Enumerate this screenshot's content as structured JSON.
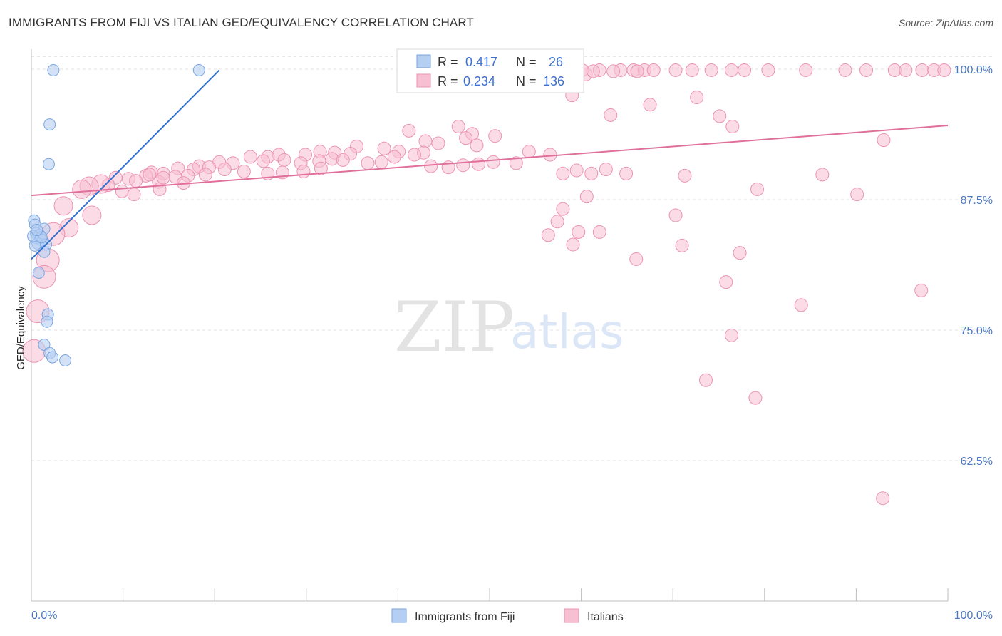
{
  "header": {
    "title": "IMMIGRANTS FROM FIJI VS ITALIAN GED/EQUIVALENCY CORRELATION CHART",
    "source": "Source: ZipAtlas.com"
  },
  "watermark": {
    "zip": "ZIP",
    "atlas": "atlas"
  },
  "stats": {
    "fiji": {
      "r_label": "R =",
      "r_value": "0.417",
      "n_label": "N =",
      "n_value": "26"
    },
    "italians": {
      "r_label": "R =",
      "r_value": "0.234",
      "n_label": "N =",
      "n_value": "136"
    }
  },
  "colors": {
    "fiji_fill": "#b5cff2",
    "fiji_stroke": "#7aa6e0",
    "fiji_line": "#2f6fd0",
    "italians_fill": "#f7bfd2",
    "italians_stroke": "#ec93b3",
    "italians_line": "#e0709a",
    "grid": "#e2e2e2",
    "tick_text": "#4a78c4"
  },
  "chart_data": {
    "type": "scatter",
    "title": "IMMIGRANTS FROM FIJI VS ITALIAN GED/EQUIVALENCY CORRELATION CHART",
    "xlabel": "",
    "ylabel": "GED/Equivalency",
    "xlim": [
      0,
      100
    ],
    "ylim": [
      50,
      102
    ],
    "x_tick_labels": [
      "0.0%",
      "100.0%"
    ],
    "y_ticks": [
      62.5,
      75.0,
      87.5,
      100.0
    ],
    "y_tick_labels": [
      "62.5%",
      "75.0%",
      "87.5%",
      "100.0%"
    ],
    "grid": true,
    "legend_position": "bottom",
    "series": [
      {
        "name": "Immigrants from Fiji",
        "r": 0.417,
        "n": 26,
        "trend": [
          [
            0.0,
            81.8
          ],
          [
            20.5,
            99.9
          ]
        ],
        "points": [
          [
            2.4,
            99.9
          ],
          [
            18.3,
            99.9
          ],
          [
            2.0,
            94.7
          ],
          [
            1.9,
            90.9
          ],
          [
            0.3,
            85.5
          ],
          [
            0.4,
            85.1
          ],
          [
            1.4,
            84.7
          ],
          [
            0.5,
            84.3
          ],
          [
            0.9,
            84.1
          ],
          [
            0.6,
            83.8
          ],
          [
            1.0,
            83.7
          ],
          [
            1.2,
            83.6
          ],
          [
            0.7,
            83.3
          ],
          [
            1.6,
            83.2
          ],
          [
            0.4,
            83.1
          ],
          [
            1.4,
            82.5
          ],
          [
            0.8,
            80.5
          ],
          [
            1.8,
            76.5
          ],
          [
            1.7,
            75.8
          ],
          [
            1.4,
            73.6
          ],
          [
            2.0,
            72.8
          ],
          [
            2.3,
            72.4
          ],
          [
            3.7,
            72.1
          ],
          [
            0.2,
            84.0
          ],
          [
            1.1,
            83.9
          ],
          [
            0.6,
            84.6
          ]
        ]
      },
      {
        "name": "Italians",
        "r": 0.234,
        "n": 136,
        "trend": [
          [
            0.0,
            87.9
          ],
          [
            100.0,
            94.6
          ]
        ],
        "points": [
          [
            55.4,
            99.9
          ],
          [
            56.9,
            99.9
          ],
          [
            58.1,
            99.9
          ],
          [
            60.1,
            99.9
          ],
          [
            62.0,
            99.9
          ],
          [
            64.3,
            99.9
          ],
          [
            65.7,
            99.9
          ],
          [
            66.9,
            99.9
          ],
          [
            67.9,
            99.9
          ],
          [
            70.3,
            99.9
          ],
          [
            72.1,
            99.9
          ],
          [
            74.2,
            99.9
          ],
          [
            76.4,
            99.9
          ],
          [
            77.8,
            99.9
          ],
          [
            80.4,
            99.9
          ],
          [
            84.5,
            99.9
          ],
          [
            88.8,
            99.9
          ],
          [
            91.1,
            99.9
          ],
          [
            94.2,
            99.9
          ],
          [
            95.4,
            99.9
          ],
          [
            97.2,
            99.9
          ],
          [
            98.5,
            99.9
          ],
          [
            99.6,
            99.9
          ],
          [
            63.5,
            99.8
          ],
          [
            66.1,
            99.8
          ],
          [
            60.5,
            99.5
          ],
          [
            61.3,
            99.8
          ],
          [
            59.2,
            99.8
          ],
          [
            57.6,
            99.8
          ],
          [
            56.5,
            99.9
          ],
          [
            59.0,
            97.5
          ],
          [
            72.6,
            97.3
          ],
          [
            67.5,
            96.6
          ],
          [
            63.2,
            95.6
          ],
          [
            75.1,
            95.5
          ],
          [
            76.5,
            94.5
          ],
          [
            41.2,
            94.1
          ],
          [
            46.6,
            94.5
          ],
          [
            48.1,
            93.8
          ],
          [
            50.6,
            93.6
          ],
          [
            47.4,
            93.4
          ],
          [
            43.0,
            93.1
          ],
          [
            44.4,
            92.9
          ],
          [
            48.6,
            92.7
          ],
          [
            35.5,
            92.6
          ],
          [
            38.5,
            92.4
          ],
          [
            40.1,
            92.1
          ],
          [
            42.8,
            92.0
          ],
          [
            54.3,
            92.1
          ],
          [
            56.6,
            91.8
          ],
          [
            31.5,
            92.1
          ],
          [
            33.1,
            92.0
          ],
          [
            34.8,
            91.9
          ],
          [
            29.9,
            91.8
          ],
          [
            27.0,
            91.8
          ],
          [
            25.8,
            91.6
          ],
          [
            23.9,
            91.6
          ],
          [
            25.3,
            91.2
          ],
          [
            27.6,
            91.3
          ],
          [
            29.4,
            91.0
          ],
          [
            31.4,
            91.2
          ],
          [
            32.8,
            91.4
          ],
          [
            34.0,
            91.3
          ],
          [
            36.7,
            91.0
          ],
          [
            38.2,
            91.1
          ],
          [
            39.6,
            91.6
          ],
          [
            41.8,
            91.8
          ],
          [
            43.6,
            90.7
          ],
          [
            45.5,
            90.6
          ],
          [
            47.1,
            90.8
          ],
          [
            48.8,
            90.9
          ],
          [
            50.4,
            91.1
          ],
          [
            52.9,
            91.0
          ],
          [
            20.5,
            91.1
          ],
          [
            22.0,
            91.0
          ],
          [
            18.3,
            90.7
          ],
          [
            16.0,
            90.5
          ],
          [
            17.7,
            90.4
          ],
          [
            19.4,
            90.6
          ],
          [
            21.1,
            90.4
          ],
          [
            23.2,
            90.2
          ],
          [
            25.8,
            90.0
          ],
          [
            27.4,
            90.1
          ],
          [
            29.7,
            90.2
          ],
          [
            31.6,
            90.5
          ],
          [
            13.1,
            90.1
          ],
          [
            14.4,
            90.0
          ],
          [
            12.5,
            89.8
          ],
          [
            15.7,
            89.7
          ],
          [
            17.1,
            89.8
          ],
          [
            19.0,
            89.9
          ],
          [
            9.2,
            89.6
          ],
          [
            10.6,
            89.5
          ],
          [
            11.4,
            89.3
          ],
          [
            13.9,
            89.2
          ],
          [
            16.6,
            89.1
          ],
          [
            8.4,
            88.9
          ],
          [
            7.6,
            89.0
          ],
          [
            6.3,
            88.8
          ],
          [
            5.5,
            88.5
          ],
          [
            9.9,
            88.3
          ],
          [
            11.2,
            88.0
          ],
          [
            14.0,
            88.5
          ],
          [
            12.9,
            89.9
          ],
          [
            58.0,
            90.0
          ],
          [
            59.5,
            90.3
          ],
          [
            61.1,
            90.0
          ],
          [
            62.7,
            90.4
          ],
          [
            64.9,
            90.0
          ],
          [
            71.3,
            89.8
          ],
          [
            79.2,
            88.5
          ],
          [
            86.3,
            89.9
          ],
          [
            93.0,
            93.2
          ],
          [
            90.1,
            88.0
          ],
          [
            60.6,
            87.8
          ],
          [
            58.0,
            86.6
          ],
          [
            70.3,
            86.0
          ],
          [
            57.4,
            85.4
          ],
          [
            59.7,
            84.4
          ],
          [
            56.4,
            84.1
          ],
          [
            59.1,
            83.2
          ],
          [
            62.0,
            84.4
          ],
          [
            71.0,
            83.1
          ],
          [
            77.3,
            82.4
          ],
          [
            66.0,
            81.8
          ],
          [
            75.8,
            79.6
          ],
          [
            84.0,
            77.4
          ],
          [
            97.1,
            78.8
          ],
          [
            76.4,
            74.5
          ],
          [
            73.6,
            70.2
          ],
          [
            79.0,
            68.5
          ],
          [
            92.9,
            58.9
          ],
          [
            6.6,
            86.0
          ],
          [
            3.5,
            86.9
          ],
          [
            4.1,
            84.8
          ],
          [
            2.4,
            84.2
          ],
          [
            1.8,
            81.7
          ],
          [
            1.4,
            80.1
          ],
          [
            0.7,
            76.8
          ],
          [
            0.3,
            73.0
          ],
          [
            14.4,
            89.6
          ]
        ]
      }
    ]
  },
  "legend": {
    "items": [
      "Immigrants from Fiji",
      "Italians"
    ]
  }
}
